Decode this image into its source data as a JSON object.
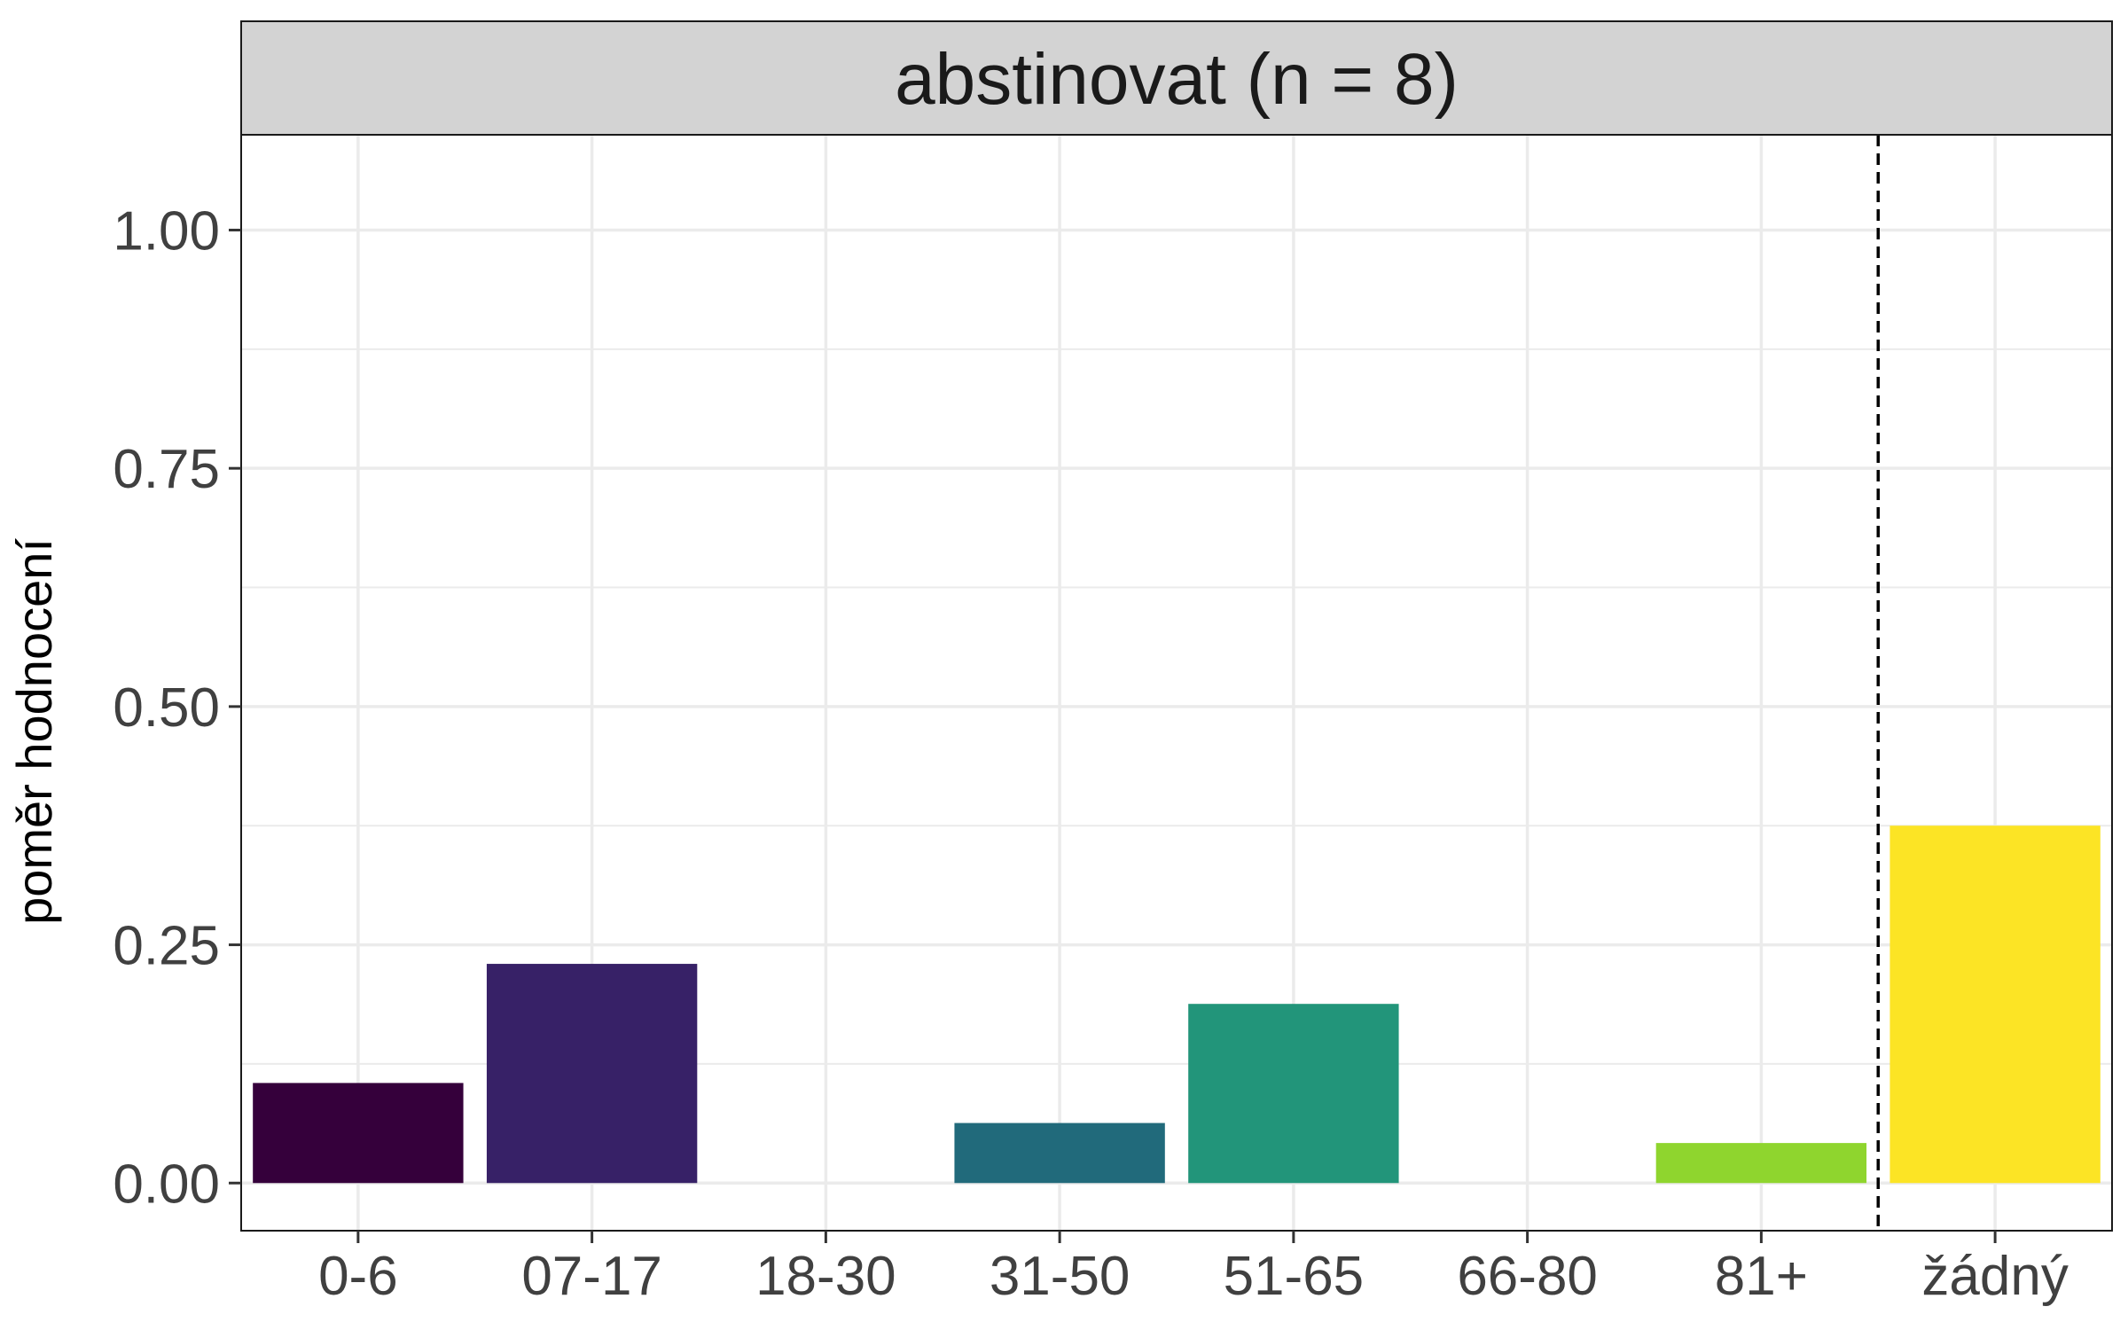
{
  "chart_data": {
    "type": "bar",
    "facet_title": "abstinovat (n = 8)",
    "xlabel": "",
    "ylabel": "poměr hodnocení",
    "categories": [
      "0-6",
      "07-17",
      "18-30",
      "31-50",
      "51-65",
      "66-80",
      "81+",
      "žádný"
    ],
    "values": [
      0.105,
      0.23,
      0.0,
      0.063,
      0.188,
      0.0,
      0.042,
      0.375
    ],
    "colors": [
      "#35003b",
      "#372167",
      "#2b4b7f",
      "#216a7b",
      "#22957a",
      "#5ec35f",
      "#8fd52e",
      "#fce425"
    ],
    "ylim": [
      -0.05,
      1.1
    ],
    "yticks": [
      0.0,
      0.25,
      0.5,
      0.75,
      1.0
    ],
    "ytick_labels": [
      "0.00",
      "0.25",
      "0.50",
      "0.75",
      "1.00"
    ],
    "grid": true,
    "reference_line": {
      "between": [
        "81+",
        "žádný"
      ],
      "style": "dashed"
    }
  }
}
